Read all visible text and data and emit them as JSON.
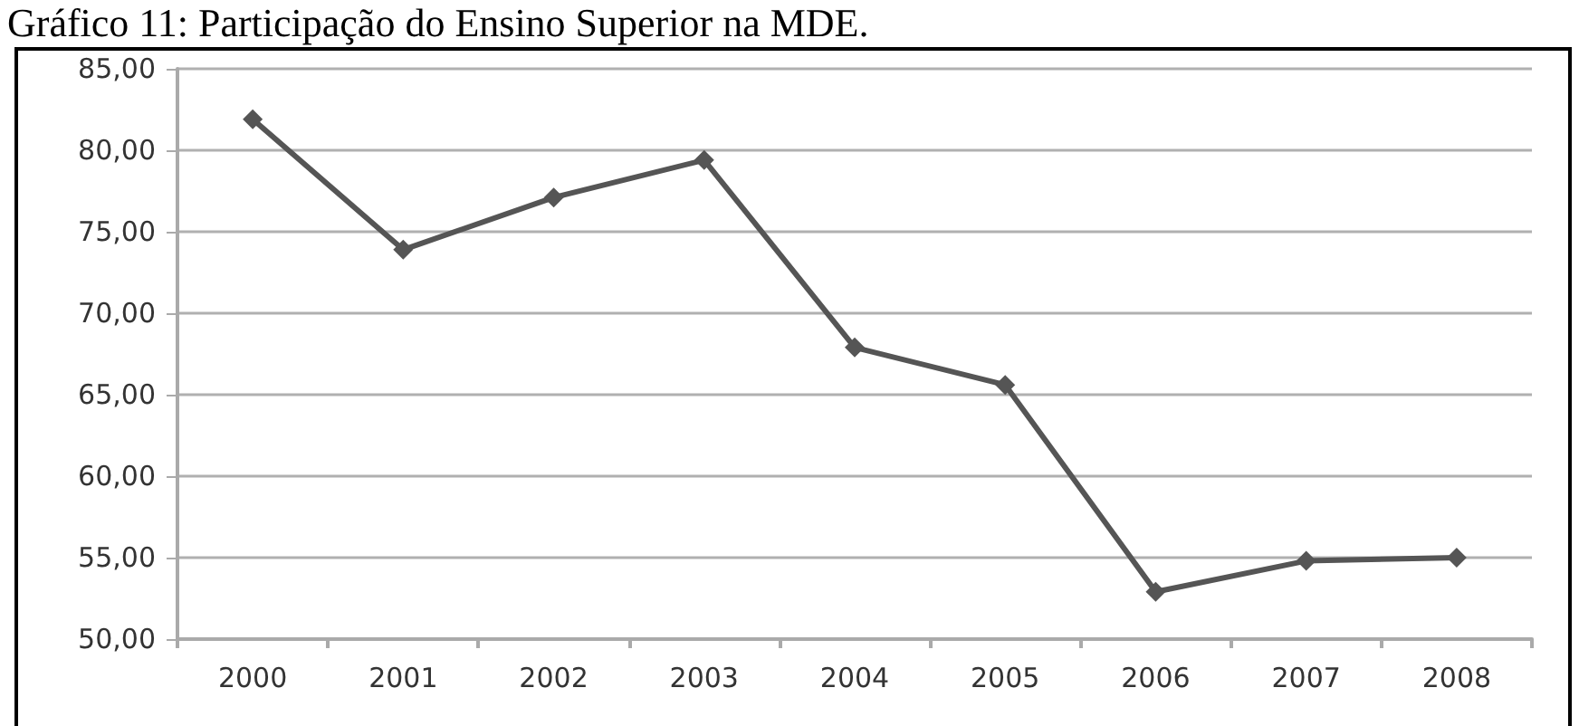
{
  "chart_data": {
    "type": "line",
    "title": "Gráfico 11: Participação do Ensino Superior na MDE.",
    "categories": [
      "2000",
      "2001",
      "2002",
      "2003",
      "2004",
      "2005",
      "2006",
      "2007",
      "2008"
    ],
    "series": [
      {
        "color": "#555555",
        "values": [
          81.9,
          73.9,
          77.1,
          79.4,
          67.9,
          65.6,
          52.9,
          54.8,
          55.0
        ]
      }
    ],
    "ylim": [
      50,
      85
    ],
    "yticks": [
      {
        "value": 50,
        "label": "50,00"
      },
      {
        "value": 55,
        "label": "55,00"
      },
      {
        "value": 60,
        "label": "60,00"
      },
      {
        "value": 65,
        "label": "65,00"
      },
      {
        "value": 70,
        "label": "70,00"
      },
      {
        "value": 75,
        "label": "75,00"
      },
      {
        "value": 80,
        "label": "80,00"
      },
      {
        "value": 85,
        "label": "85,00"
      }
    ],
    "grid": "y",
    "marker": "diamond",
    "line_style": "solid"
  }
}
